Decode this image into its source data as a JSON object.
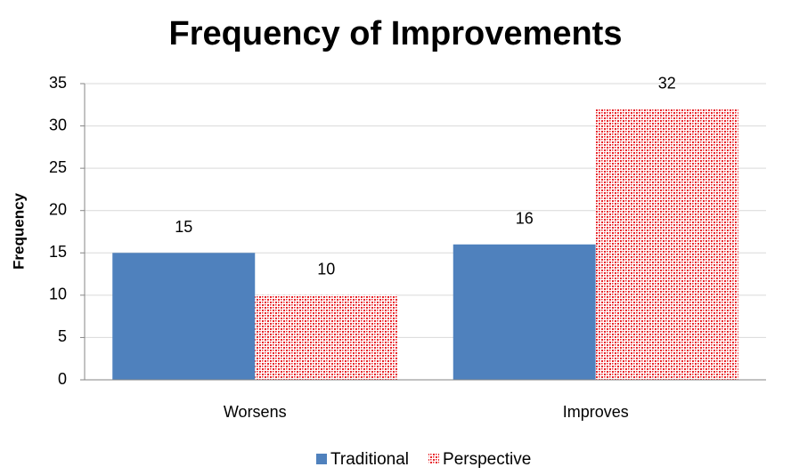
{
  "chart_data": {
    "type": "bar",
    "title": "Frequency of Improvements",
    "y_label": "Frequency",
    "categories": [
      "Worsens",
      "Improves"
    ],
    "series": [
      {
        "name": "Traditional",
        "color": "#4f81bd",
        "pattern": "solid",
        "values": [
          15,
          16
        ]
      },
      {
        "name": "Perspective",
        "color": "#e8262b",
        "pattern": "checker",
        "values": [
          10,
          32
        ]
      }
    ],
    "ylim": [
      0,
      35
    ],
    "yticks": [
      0,
      5,
      10,
      15,
      20,
      25,
      30,
      35
    ],
    "grid": true,
    "legend": "bottom",
    "data_labels": true
  }
}
